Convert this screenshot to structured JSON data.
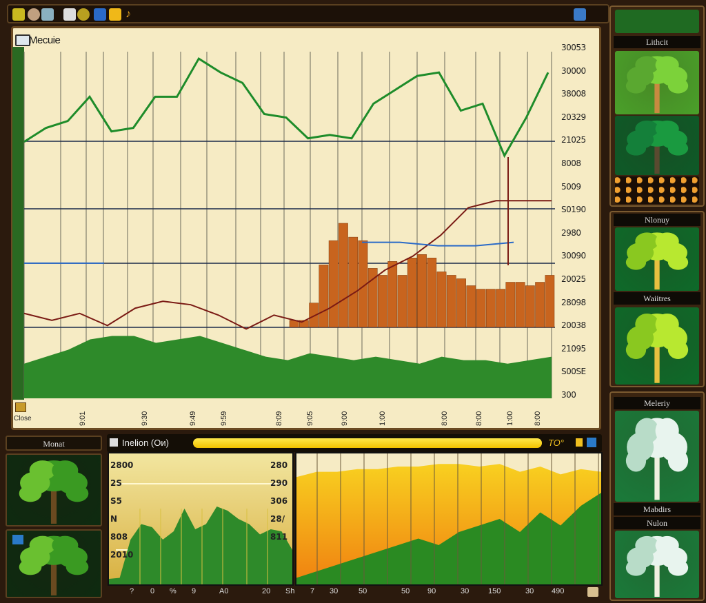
{
  "toolbar": {
    "icons": [
      "coins-icon",
      "lightbulb-icon",
      "monitor-icon",
      "grid-icon",
      "medal-icon",
      "disk-icon",
      "gold-square-icon",
      "horn-icon"
    ],
    "right_icon": "window-icon"
  },
  "main": {
    "title": "Mecuie",
    "close_label": "Close",
    "y_labels": [
      "30053",
      "30000",
      "38008",
      "20329",
      "21025",
      "8008",
      "5009",
      "S0190",
      "2980",
      "30090",
      "20025",
      "28098",
      "20038",
      "21095",
      "S00SE",
      "300"
    ],
    "x_labels": [
      "9:01",
      "9:30",
      "9:49",
      "9:59",
      "8:09",
      "9:05",
      "9:00",
      "1:00",
      "8:00",
      "8:00",
      "1:00",
      "8:00"
    ]
  },
  "chart_data": [
    {
      "type": "line",
      "title": "Mecuie",
      "scale": "0-100 relative (axis labels illegible)",
      "series": [
        {
          "color": "#1e8c2a",
          "values": [
            74,
            78,
            80,
            87,
            77,
            78,
            87,
            87,
            98,
            94,
            91,
            82,
            81,
            75,
            76,
            75,
            85,
            89,
            93,
            94,
            83,
            85,
            70,
            81,
            94
          ]
        },
        {
          "color": "#7a1a14",
          "values": [
            24.5,
            22.5,
            24.5,
            21,
            26,
            28,
            27,
            24,
            20,
            24,
            22,
            26,
            31,
            37,
            41,
            47,
            55,
            57,
            57,
            57
          ]
        },
        {
          "color": "#2a6ac8",
          "values": [
            39,
            39,
            39,
            null,
            null,
            null,
            null,
            null,
            45,
            45,
            44,
            44,
            45
          ]
        }
      ],
      "bars": {
        "color": "#c8641e",
        "baseline": 20.5,
        "values": [
          2,
          2,
          7,
          18,
          25,
          30,
          26,
          25,
          17,
          15,
          19,
          15,
          20,
          21,
          20,
          16,
          15,
          14,
          12,
          11,
          11,
          11,
          13,
          13,
          12,
          13,
          15
        ]
      },
      "area": {
        "color": "#2e8a2a",
        "values": [
          10,
          12,
          14,
          17,
          18,
          18,
          16,
          17,
          18,
          16,
          14,
          12,
          11,
          13,
          12,
          11,
          12,
          11,
          10,
          12,
          11,
          11,
          10,
          11,
          12
        ]
      },
      "ylim": [
        0,
        100
      ],
      "grid": true
    },
    {
      "type": "area",
      "y_labels_left": [
        "2800",
        "2S",
        "S5",
        "N",
        "808",
        "2010"
      ],
      "y_labels_right": [
        "280",
        "290",
        "306",
        "28/",
        "811"
      ],
      "x_labels": [
        "?",
        "0",
        "%",
        "9",
        "A0",
        "20",
        "Sh"
      ],
      "values": [
        2,
        3,
        40,
        55,
        52,
        40,
        48,
        70,
        50,
        55,
        72,
        68,
        60,
        55,
        45,
        50,
        48,
        30
      ],
      "ylim": [
        0,
        100
      ]
    },
    {
      "type": "area",
      "x_labels": [
        "7",
        "30",
        "50",
        "50",
        "90",
        "30",
        "150",
        "30",
        "490"
      ],
      "series": [
        {
          "color": "#f5b800",
          "values": [
            82,
            86,
            86,
            88,
            88,
            90,
            90,
            92,
            92,
            90,
            92,
            86,
            90,
            84,
            88,
            86
          ]
        },
        {
          "color": "#2a8a22",
          "values": [
            5,
            10,
            15,
            20,
            25,
            30,
            35,
            30,
            40,
            45,
            50,
            40,
            55,
            45,
            60,
            70
          ]
        }
      ],
      "ylim": [
        0,
        100
      ]
    }
  ],
  "bottom": {
    "header_label": "Inelion (Ои)",
    "progress": 100,
    "header_right": "ТО°",
    "left_label": "Monat"
  },
  "sidebar": {
    "panels": [
      {
        "label": "Lithcit"
      },
      {
        "label": "Nlonuy"
      },
      {
        "label": "Waiitres"
      },
      {
        "label": "Meleriy"
      },
      {
        "label": "Mabdirs"
      },
      {
        "label": "Nulon"
      }
    ]
  },
  "colors": {
    "frame": "#2b1a0d",
    "panel": "#f6ebc4",
    "accent": "#f2c200",
    "green": "#1e8c2a"
  }
}
